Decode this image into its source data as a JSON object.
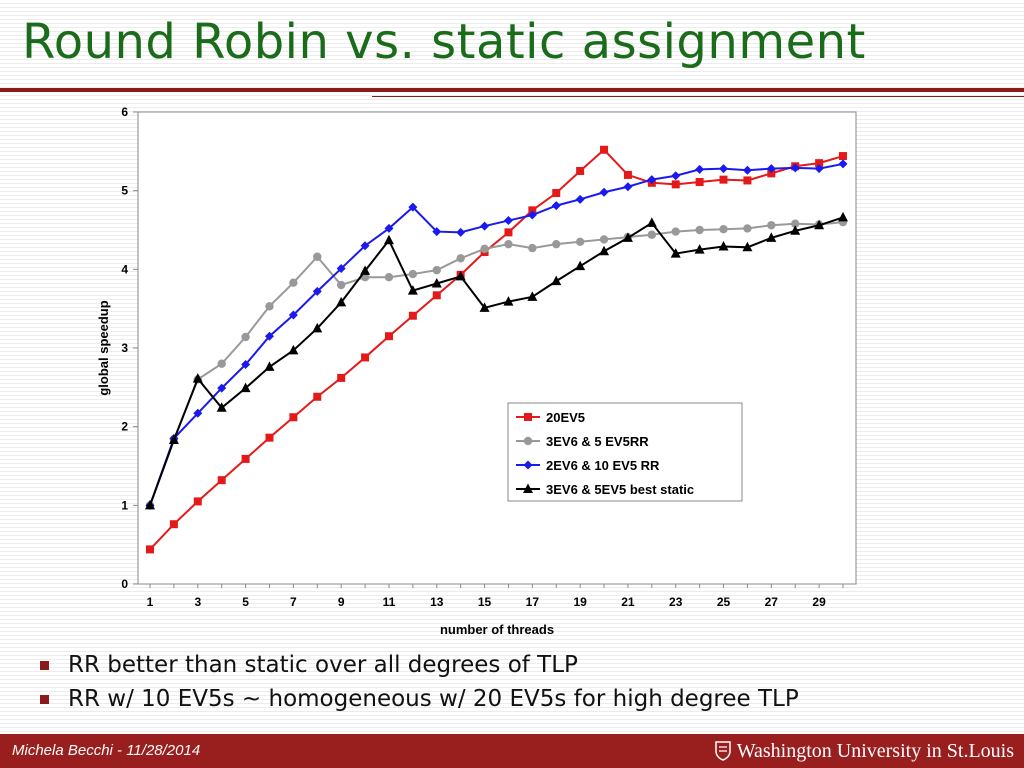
{
  "slide": {
    "title": "Round Robin vs. static assignment",
    "bullets": [
      "RR better than static over all degrees of TLP",
      "RR w/ 10 EV5s ~ homogeneous w/ 20 EV5s for high degree TLP"
    ],
    "footer_left": "Michela Becchi - 11/28/2014",
    "footer_logo": "Washington University in St.Louis"
  },
  "colors": {
    "title": "#1a6b1a",
    "accent": "#8b1a1a",
    "footer": "#991e1e"
  },
  "chart_data": {
    "type": "line",
    "title": "",
    "xlabel": "number of threads",
    "ylabel": "global speedup",
    "x": [
      1,
      2,
      3,
      4,
      5,
      6,
      7,
      8,
      9,
      10,
      11,
      12,
      13,
      14,
      15,
      16,
      17,
      18,
      19,
      20,
      21,
      22,
      23,
      24,
      25,
      26,
      27,
      28,
      29,
      30
    ],
    "xticks": [
      1,
      3,
      5,
      7,
      9,
      11,
      13,
      15,
      17,
      19,
      21,
      23,
      25,
      27,
      29
    ],
    "xlim": [
      1,
      30
    ],
    "ylim": [
      0,
      6
    ],
    "yticks": [
      0,
      1,
      2,
      3,
      4,
      5,
      6
    ],
    "grid": false,
    "legend_position": "lower-right",
    "series": [
      {
        "name": "20EV5",
        "color": "#e41a1a",
        "marker": "square",
        "values": [
          0.44,
          0.76,
          1.05,
          1.32,
          1.59,
          1.86,
          2.12,
          2.38,
          2.62,
          2.88,
          3.15,
          3.41,
          3.67,
          3.93,
          4.22,
          4.47,
          4.75,
          4.97,
          5.25,
          5.52,
          5.2,
          5.1,
          5.08,
          5.11,
          5.14,
          5.13,
          5.22,
          5.31,
          5.35,
          5.44
        ]
      },
      {
        "name": "3EV6 & 5 EV5RR",
        "color": "#999999",
        "marker": "circle",
        "values": [
          1.0,
          1.84,
          2.6,
          2.8,
          3.14,
          3.53,
          3.83,
          4.16,
          3.8,
          3.9,
          3.9,
          3.94,
          3.99,
          4.14,
          4.26,
          4.32,
          4.27,
          4.32,
          4.35,
          4.38,
          4.41,
          4.44,
          4.48,
          4.5,
          4.51,
          4.52,
          4.56,
          4.58,
          4.57,
          4.6
        ]
      },
      {
        "name": "2EV6 & 10 EV5 RR",
        "color": "#1a1aee",
        "marker": "diamond",
        "values": [
          1.0,
          1.85,
          2.17,
          2.49,
          2.79,
          3.15,
          3.42,
          3.72,
          4.01,
          4.3,
          4.52,
          4.79,
          4.48,
          4.47,
          4.55,
          4.62,
          4.69,
          4.81,
          4.89,
          4.98,
          5.05,
          5.14,
          5.19,
          5.27,
          5.28,
          5.26,
          5.28,
          5.29,
          5.28,
          5.34
        ]
      },
      {
        "name": "3EV6 & 5EV5 best static",
        "color": "#000000",
        "marker": "triangle",
        "values": [
          1.0,
          1.83,
          2.61,
          2.24,
          2.49,
          2.76,
          2.97,
          3.25,
          3.58,
          3.98,
          4.37,
          3.73,
          3.82,
          3.91,
          3.51,
          3.59,
          3.65,
          3.85,
          4.04,
          4.23,
          4.4,
          4.59,
          4.2,
          4.25,
          4.29,
          4.28,
          4.4,
          4.49,
          4.56,
          4.66
        ]
      }
    ]
  }
}
